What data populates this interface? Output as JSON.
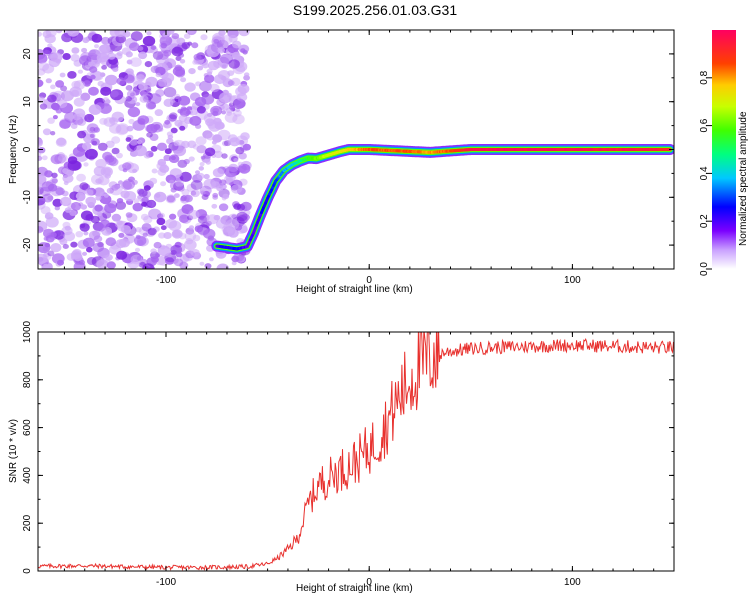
{
  "page": {
    "title": "S199.2025.256.01.03.G31"
  },
  "colors": {
    "snr_line": "#e8312e",
    "frame": "#000000",
    "noise": "#8a2be2"
  },
  "chart_data": [
    {
      "type": "heatmap",
      "title": "S199.2025.256.01.03.G31",
      "xlabel": "Height of straight line (km)",
      "ylabel": "Frequency (Hz)",
      "xlim": [
        -163,
        150
      ],
      "ylim": [
        -25,
        25
      ],
      "x_ticks": [
        -100,
        0,
        100
      ],
      "y_ticks": [
        -20,
        -10,
        0,
        10,
        20
      ],
      "colorbar": {
        "label": "Normalized spectral amplitude",
        "range": [
          0,
          1
        ],
        "ticks": [
          "0.0",
          "0.2",
          "0.4",
          "0.6",
          "0.8"
        ],
        "colormap": "rainbow"
      },
      "ridge": {
        "description": "frequency of spectral peak vs height",
        "x": [
          -75,
          -70,
          -65,
          -60,
          -57,
          -54,
          -50,
          -46,
          -42,
          -38,
          -34,
          -30,
          -26,
          -22,
          -18,
          -14,
          -10,
          -5,
          0,
          10,
          20,
          30,
          40,
          50,
          60,
          80,
          100,
          120,
          140,
          148
        ],
        "y": [
          -20.2,
          -20.5,
          -20.8,
          -20.3,
          -17.5,
          -14.2,
          -10.2,
          -6.6,
          -4.4,
          -3.2,
          -2.4,
          -1.8,
          -1.9,
          -1.4,
          -0.9,
          -0.4,
          0,
          0,
          0,
          -0.2,
          -0.4,
          -0.6,
          -0.3,
          0,
          0,
          0,
          0,
          0,
          0,
          0
        ],
        "amplitude": [
          0.2,
          0.25,
          0.25,
          0.2,
          0.2,
          0.22,
          0.25,
          0.3,
          0.35,
          0.4,
          0.45,
          0.55,
          0.6,
          0.65,
          0.7,
          0.72,
          0.75,
          0.8,
          0.85,
          0.85,
          0.85,
          0.8,
          0.85,
          0.95,
          0.98,
          0.98,
          0.97,
          0.95,
          0.95,
          0.9
        ]
      }
    },
    {
      "type": "line",
      "xlabel": "Height of straight line (km)",
      "ylabel": "SNR (10 * v/v)",
      "xlim": [
        -163,
        150
      ],
      "ylim": [
        0,
        1000
      ],
      "x_ticks": [
        -100,
        0,
        100
      ],
      "y_ticks": [
        0,
        200,
        400,
        600,
        800,
        1000
      ],
      "series": [
        {
          "name": "SNR",
          "x": [
            -163,
            -140,
            -120,
            -100,
            -80,
            -60,
            -50,
            -45,
            -40,
            -35,
            -30,
            -25,
            -20,
            -15,
            -10,
            -5,
            0,
            5,
            10,
            15,
            20,
            25,
            30,
            35,
            40,
            50,
            60,
            80,
            100,
            120,
            140,
            150
          ],
          "y": [
            20,
            22,
            18,
            15,
            15,
            18,
            30,
            55,
            90,
            140,
            280,
            360,
            390,
            420,
            440,
            470,
            510,
            560,
            640,
            730,
            800,
            860,
            900,
            910,
            920,
            930,
            935,
            940,
            945,
            940,
            935,
            935
          ]
        }
      ]
    }
  ]
}
